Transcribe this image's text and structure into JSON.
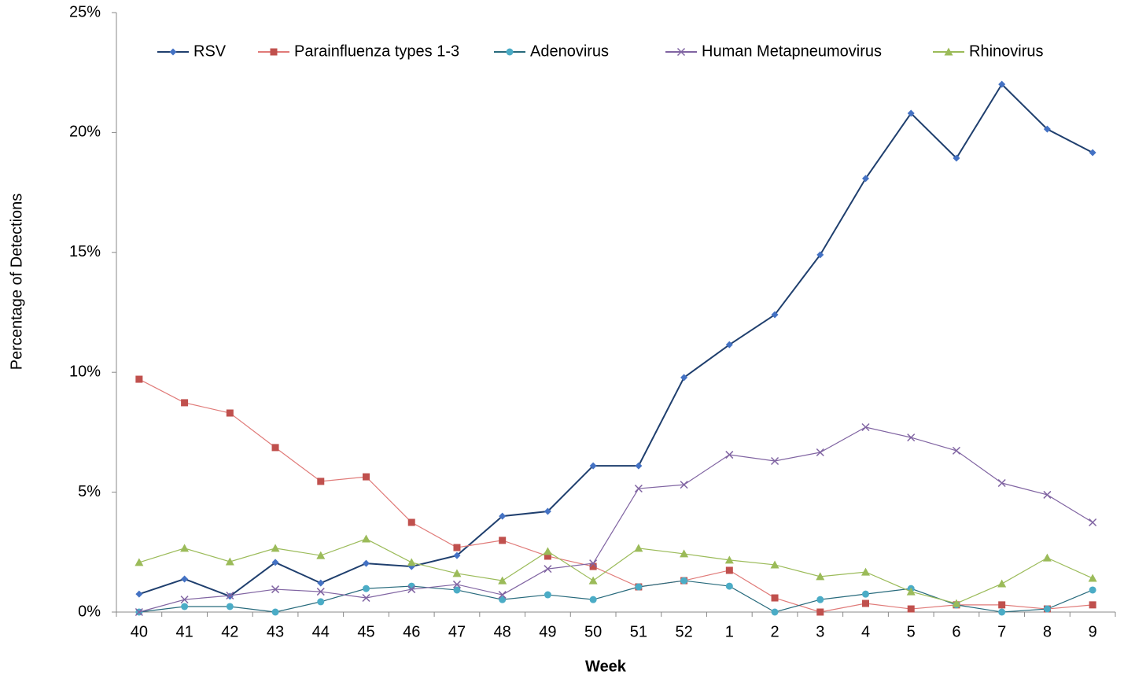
{
  "chart_data": {
    "type": "line",
    "x_label": "Week",
    "y_label": "Percentage of Detections",
    "categories": [
      "40",
      "41",
      "42",
      "43",
      "44",
      "45",
      "46",
      "47",
      "48",
      "49",
      "50",
      "51",
      "52",
      "1",
      "2",
      "3",
      "4",
      "5",
      "6",
      "7",
      "8",
      "9"
    ],
    "ylim": [
      0,
      25
    ],
    "yticks": [
      {
        "value": 0,
        "label": "0%"
      },
      {
        "value": 5,
        "label": "5%"
      },
      {
        "value": 10,
        "label": "10%"
      },
      {
        "value": 15,
        "label": "15%"
      },
      {
        "value": 20,
        "label": "20%"
      },
      {
        "value": 25,
        "label": "25%"
      }
    ],
    "grid": false,
    "legend": "top",
    "series": [
      {
        "name": "RSV",
        "color": "#1f3f6e",
        "marker_color": "#4472c4",
        "marker": "diamond",
        "values": [
          0.75,
          1.38,
          0.66,
          2.07,
          1.21,
          2.03,
          1.9,
          2.36,
          4.0,
          4.2,
          6.1,
          6.1,
          9.78,
          11.15,
          12.4,
          14.9,
          18.08,
          20.8,
          18.93,
          22.01,
          20.14,
          19.16
        ]
      },
      {
        "name": "Parainfluenza types 1-3",
        "color": "#e07a78",
        "marker_color": "#c0504d",
        "marker": "square",
        "values": [
          9.71,
          8.73,
          8.3,
          6.86,
          5.45,
          5.64,
          3.74,
          2.69,
          2.99,
          2.33,
          1.9,
          1.05,
          1.31,
          1.74,
          0.59,
          0,
          0.36,
          0.13,
          0.3,
          0.3,
          0.13,
          0.3
        ]
      },
      {
        "name": "Adenovirus",
        "color": "#276a7c",
        "marker_color": "#4bacc6",
        "marker": "circle",
        "values": [
          0,
          0.23,
          0.23,
          0,
          0.43,
          0.98,
          1.08,
          0.92,
          0.52,
          0.72,
          0.52,
          1.05,
          1.31,
          1.08,
          0,
          0.52,
          0.75,
          0.98,
          0.3,
          0,
          0.13,
          0.92
        ]
      },
      {
        "name": "Human Metapneumovirus",
        "color": "#8064a2",
        "marker_color": "#8064a2",
        "marker": "x",
        "values": [
          0,
          0.52,
          0.69,
          0.95,
          0.85,
          0.59,
          0.95,
          1.15,
          0.72,
          1.8,
          2.03,
          5.15,
          5.31,
          6.56,
          6.3,
          6.66,
          7.71,
          7.28,
          6.73,
          5.38,
          4.89,
          3.74
        ]
      },
      {
        "name": "Rhinovirus",
        "color": "#9bbb59",
        "marker_color": "#9bbb59",
        "marker": "triangle",
        "values": [
          2.07,
          2.66,
          2.1,
          2.66,
          2.36,
          3.05,
          2.07,
          1.61,
          1.31,
          2.53,
          1.31,
          2.66,
          2.43,
          2.17,
          1.97,
          1.48,
          1.67,
          0.85,
          0.36,
          1.18,
          2.26,
          1.41
        ]
      }
    ]
  }
}
